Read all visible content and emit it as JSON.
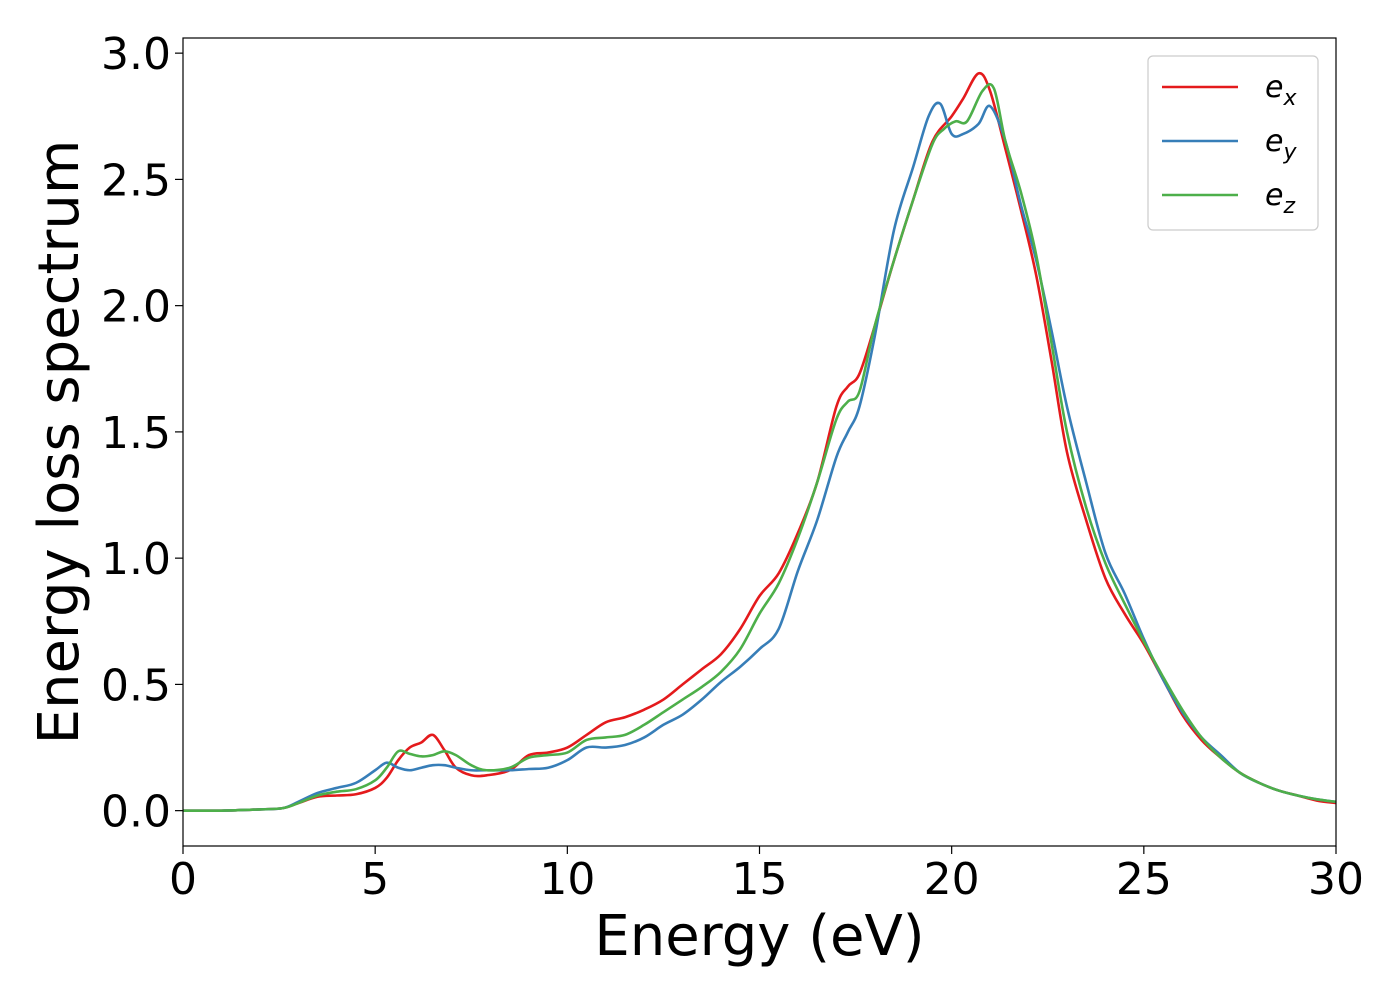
{
  "chart_data": {
    "type": "line",
    "xlabel": "Energy (eV)",
    "ylabel": "Energy loss spectrum",
    "xlim": [
      0,
      30
    ],
    "ylim": [
      -0.14,
      3.06
    ],
    "xticks": [
      0,
      5,
      10,
      15,
      20,
      25,
      30
    ],
    "xtick_labels": [
      "0",
      "5",
      "10",
      "15",
      "20",
      "25",
      "30"
    ],
    "yticks": [
      0.0,
      0.5,
      1.0,
      1.5,
      2.0,
      2.5,
      3.0
    ],
    "ytick_labels": [
      "0.0",
      "0.5",
      "1.0",
      "1.5",
      "2.0",
      "2.5",
      "3.0"
    ],
    "grid": false,
    "legend_position": "top-right",
    "series": [
      {
        "name": "e",
        "subscript": "x",
        "color": "#e41a1c",
        "x": [
          0,
          1,
          2,
          2.6,
          3,
          3.5,
          4,
          4.5,
          5,
          5.3,
          5.6,
          5.9,
          6.2,
          6.5,
          6.8,
          7.1,
          7.5,
          7.9,
          8.5,
          9,
          9.5,
          10,
          10.5,
          11,
          11.5,
          12,
          12.5,
          13,
          13.5,
          14,
          14.5,
          15,
          15.5,
          16,
          16.5,
          17,
          17.3,
          17.6,
          18,
          18.5,
          19,
          19.5,
          20,
          20.3,
          20.7,
          21,
          21.4,
          21.8,
          22.2,
          22.6,
          23,
          23.5,
          24,
          24.5,
          25,
          25.5,
          26,
          26.5,
          27,
          27.5,
          28,
          28.5,
          29,
          29.5,
          30
        ],
        "y": [
          0,
          0,
          0.005,
          0.01,
          0.03,
          0.055,
          0.06,
          0.065,
          0.09,
          0.13,
          0.2,
          0.25,
          0.27,
          0.3,
          0.24,
          0.17,
          0.14,
          0.14,
          0.16,
          0.22,
          0.23,
          0.25,
          0.3,
          0.35,
          0.37,
          0.4,
          0.44,
          0.5,
          0.56,
          0.62,
          0.72,
          0.85,
          0.94,
          1.1,
          1.3,
          1.6,
          1.68,
          1.73,
          1.92,
          2.18,
          2.42,
          2.65,
          2.75,
          2.82,
          2.92,
          2.85,
          2.62,
          2.38,
          2.12,
          1.78,
          1.42,
          1.15,
          0.92,
          0.78,
          0.66,
          0.52,
          0.38,
          0.28,
          0.21,
          0.15,
          0.11,
          0.08,
          0.06,
          0.04,
          0.03
        ]
      },
      {
        "name": "e",
        "subscript": "y",
        "color": "#377eb8",
        "x": [
          0,
          1,
          2,
          2.6,
          3,
          3.5,
          4,
          4.5,
          5,
          5.3,
          5.6,
          5.9,
          6.2,
          6.5,
          6.8,
          7.1,
          7.5,
          7.9,
          8.5,
          9,
          9.5,
          10,
          10.5,
          11,
          11.5,
          12,
          12.5,
          13,
          13.5,
          14,
          14.5,
          15,
          15.5,
          16,
          16.5,
          17,
          17.3,
          17.6,
          18,
          18.5,
          19,
          19.4,
          19.7,
          20,
          20.3,
          20.7,
          21,
          21.4,
          21.8,
          22.2,
          22.6,
          23,
          23.5,
          24,
          24.5,
          25,
          25.5,
          26,
          26.5,
          27,
          27.5,
          28,
          28.5,
          29,
          29.5,
          30
        ],
        "y": [
          0,
          0,
          0.005,
          0.01,
          0.035,
          0.07,
          0.09,
          0.11,
          0.16,
          0.19,
          0.17,
          0.16,
          0.17,
          0.18,
          0.18,
          0.17,
          0.16,
          0.16,
          0.16,
          0.165,
          0.17,
          0.2,
          0.25,
          0.25,
          0.26,
          0.29,
          0.34,
          0.38,
          0.44,
          0.51,
          0.57,
          0.64,
          0.72,
          0.95,
          1.15,
          1.4,
          1.5,
          1.6,
          1.88,
          2.3,
          2.55,
          2.75,
          2.8,
          2.68,
          2.68,
          2.72,
          2.79,
          2.65,
          2.4,
          2.18,
          1.9,
          1.6,
          1.3,
          1.02,
          0.86,
          0.68,
          0.52,
          0.39,
          0.29,
          0.22,
          0.15,
          0.11,
          0.08,
          0.06,
          0.045,
          0.035
        ]
      },
      {
        "name": "e",
        "subscript": "z",
        "color": "#4daf4a",
        "x": [
          0,
          1,
          2,
          2.6,
          3,
          3.5,
          4,
          4.5,
          5,
          5.3,
          5.6,
          5.9,
          6.2,
          6.5,
          6.8,
          7.1,
          7.5,
          7.9,
          8.5,
          9,
          9.5,
          10,
          10.5,
          11,
          11.5,
          12,
          12.5,
          13,
          13.5,
          14,
          14.5,
          15,
          15.5,
          16,
          16.5,
          17,
          17.3,
          17.6,
          18,
          18.5,
          19,
          19.5,
          19.8,
          20.1,
          20.4,
          20.8,
          21.1,
          21.4,
          21.8,
          22.2,
          22.6,
          23,
          23.5,
          24,
          24.5,
          25,
          25.5,
          26,
          26.5,
          27,
          27.5,
          28,
          28.5,
          29,
          29.5,
          30
        ],
        "y": [
          0,
          0,
          0.005,
          0.01,
          0.03,
          0.06,
          0.075,
          0.085,
          0.12,
          0.17,
          0.235,
          0.225,
          0.215,
          0.22,
          0.235,
          0.22,
          0.18,
          0.16,
          0.17,
          0.21,
          0.22,
          0.23,
          0.28,
          0.29,
          0.3,
          0.34,
          0.39,
          0.44,
          0.49,
          0.55,
          0.64,
          0.78,
          0.9,
          1.08,
          1.3,
          1.55,
          1.62,
          1.66,
          1.92,
          2.18,
          2.42,
          2.64,
          2.7,
          2.73,
          2.73,
          2.85,
          2.86,
          2.65,
          2.45,
          2.2,
          1.85,
          1.5,
          1.2,
          0.98,
          0.82,
          0.67,
          0.53,
          0.4,
          0.29,
          0.21,
          0.15,
          0.11,
          0.08,
          0.06,
          0.045,
          0.035
        ]
      }
    ]
  }
}
